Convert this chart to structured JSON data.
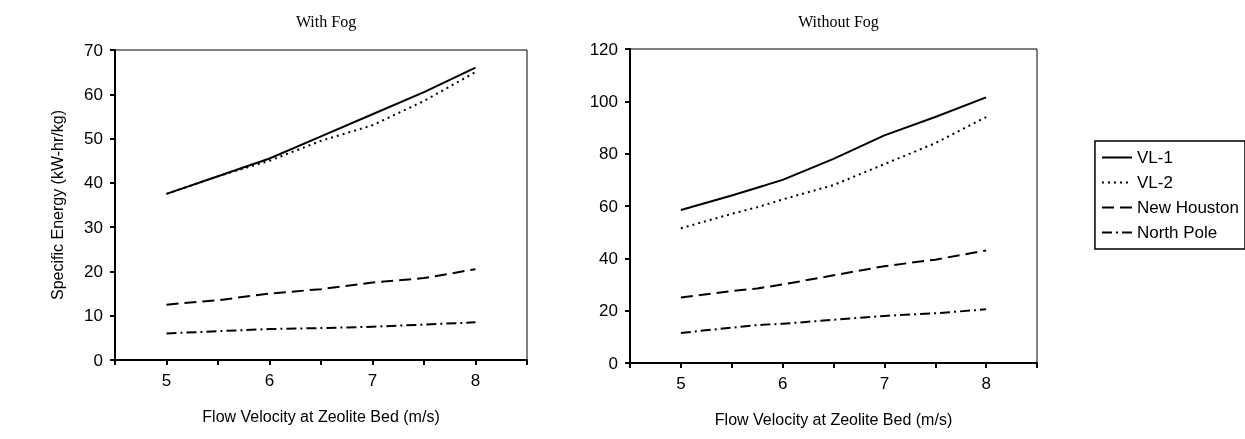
{
  "chart_data": [
    {
      "type": "line",
      "title": "With Fog",
      "xlabel": "Flow Velocity at Zeolite Bed (m/s)",
      "ylabel": "Specific Energy (kW-hr/kg)",
      "x": [
        5,
        5.5,
        6,
        6.5,
        7,
        7.5,
        8
      ],
      "series": [
        {
          "color": "#000000",
          "line_style": "solid",
          "values": [
            37.5,
            41.5,
            45.5,
            50.5,
            55.5,
            60.5,
            66
          ]
        },
        {
          "color": "#000000",
          "line_style": "dotted",
          "values": [
            37.5,
            41.5,
            45,
            49.5,
            53,
            58.5,
            65
          ]
        },
        {
          "color": "#000000",
          "line_style": "dashed",
          "values": [
            12.5,
            13.5,
            15,
            16,
            17.5,
            18.5,
            20.5
          ]
        },
        {
          "color": "#000000",
          "line_style": "dashdot",
          "values": [
            6,
            6.5,
            7,
            7.2,
            7.5,
            8,
            8.5
          ]
        }
      ],
      "xlim": [
        4.5,
        8.5
      ],
      "xticks": [
        {
          "value": 4.5,
          "label": null
        },
        5,
        {
          "value": 5.5,
          "label": null
        },
        6,
        {
          "value": 6.5,
          "label": null
        },
        7,
        {
          "value": 7.5,
          "label": null
        },
        8,
        {
          "value": 8.5,
          "label": null
        }
      ],
      "ylim": [
        0,
        70
      ],
      "yticks": [
        0,
        10,
        20,
        30,
        40,
        50,
        60,
        70
      ],
      "grid": false,
      "legend": false,
      "marker": "none"
    },
    {
      "type": "line",
      "title": "Without Fog",
      "xlabel": "Flow Velocity at Zeolite Bed (m/s)",
      "x": [
        5,
        5.5,
        5.75,
        6,
        6.5,
        7,
        7.5,
        8
      ],
      "series": [
        {
          "name": "VL-1",
          "color": "#000000",
          "line_style": "solid",
          "values": [
            58.5,
            64,
            67,
            70,
            78,
            87,
            94,
            101.5
          ]
        },
        {
          "name": "VL-2",
          "color": "#000000",
          "line_style": "dotted",
          "values": [
            51.5,
            57,
            59.5,
            62.5,
            68,
            76,
            84,
            94
          ]
        },
        {
          "name": "New Houston",
          "color": "#000000",
          "line_style": "dashed",
          "values": [
            25,
            27.5,
            28.5,
            30,
            33.5,
            37,
            39.5,
            43
          ]
        },
        {
          "name": "North Pole",
          "color": "#000000",
          "line_style": "dashdot",
          "values": [
            11.5,
            13.5,
            14.5,
            15,
            16.5,
            18,
            19,
            20.5
          ]
        }
      ],
      "xlim": [
        4.5,
        8.5
      ],
      "xticks": [
        {
          "value": 4.5,
          "label": null
        },
        5,
        {
          "value": 5.5,
          "label": null
        },
        6,
        {
          "value": 6.5,
          "label": null
        },
        7,
        {
          "value": 7.5,
          "label": null
        },
        8,
        {
          "value": 8.5,
          "label": null
        }
      ],
      "ylim": [
        0,
        120
      ],
      "yticks": [
        0,
        20,
        40,
        60,
        80,
        100,
        120
      ],
      "grid": false,
      "legend": "right",
      "marker": "none"
    }
  ]
}
